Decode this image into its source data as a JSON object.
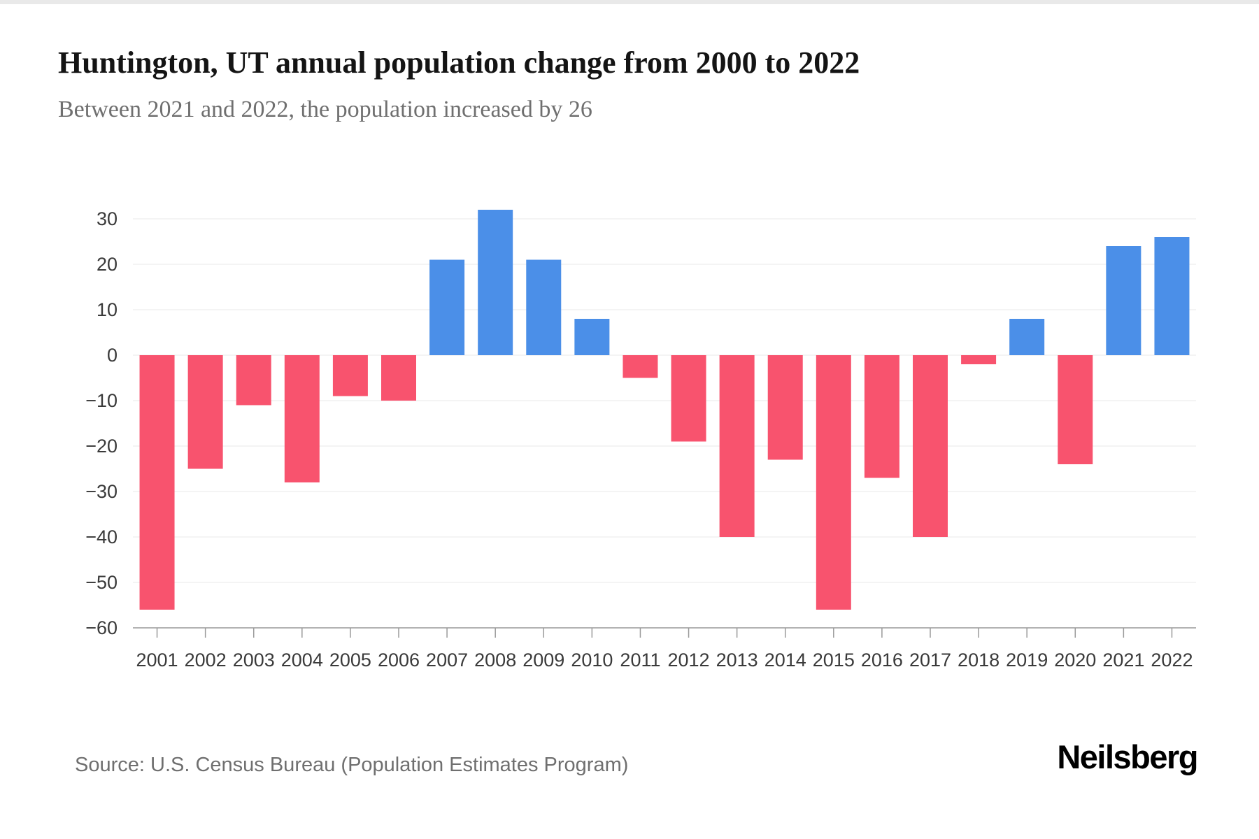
{
  "chart_data": {
    "type": "bar",
    "title": "Huntington, UT annual population change from 2000 to 2022",
    "subtitle": "Between 2021 and 2022, the population increased by 26",
    "source": "Source: U.S. Census Bureau (Population Estimates Program)",
    "brand": "Neilsberg",
    "categories": [
      "2001",
      "2002",
      "2003",
      "2004",
      "2005",
      "2006",
      "2007",
      "2008",
      "2009",
      "2010",
      "2011",
      "2012",
      "2013",
      "2014",
      "2015",
      "2016",
      "2017",
      "2018",
      "2019",
      "2020",
      "2021",
      "2022"
    ],
    "values": [
      -56,
      -25,
      -11,
      -28,
      -9,
      -10,
      21,
      32,
      21,
      8,
      -5,
      -19,
      -40,
      -23,
      -56,
      -27,
      -40,
      -2,
      8,
      -24,
      24,
      26
    ],
    "xlabel": "",
    "ylabel": "",
    "ylim": [
      -60,
      30
    ],
    "yticks": [
      30,
      20,
      10,
      0,
      -10,
      -20,
      -30,
      -40,
      -50,
      -60
    ],
    "grid": true,
    "legend": "none",
    "colors": {
      "positive": "#4b8fe8",
      "negative": "#f8536e",
      "gridline": "#eaeaea",
      "axis": "#9a9a9a",
      "tick_label": "#3a3a3a"
    }
  }
}
